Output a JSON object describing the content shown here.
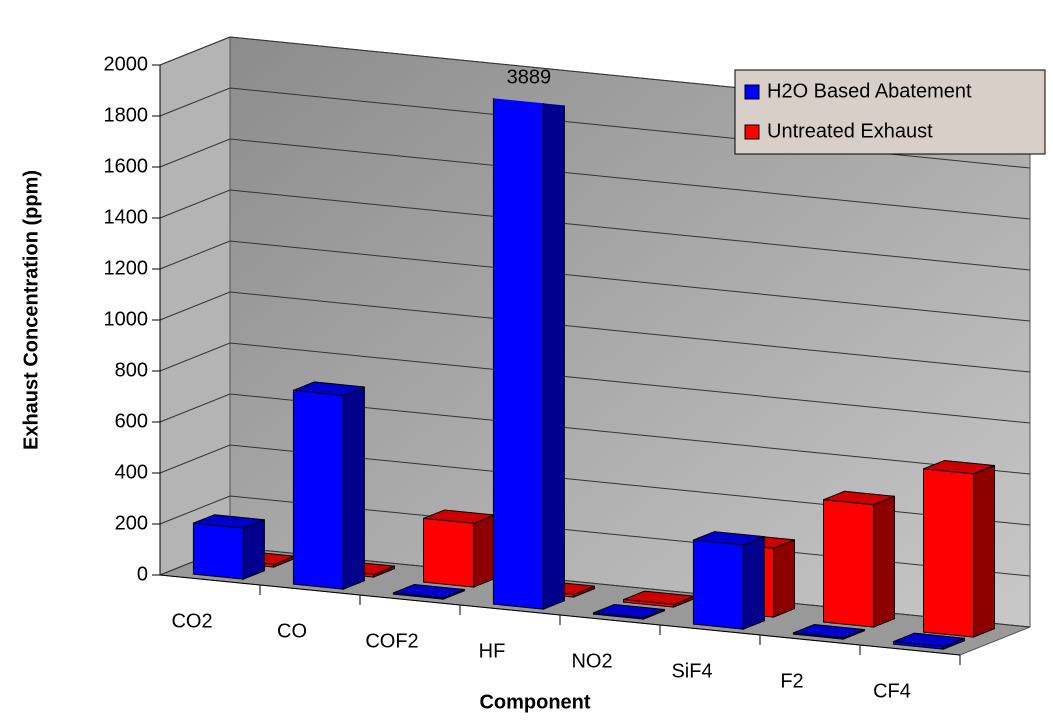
{
  "chart_data": {
    "type": "bar3d",
    "x_label": "Component",
    "y_label": "Exhaust Concentration (ppm)",
    "categories": [
      "CO2",
      "CO",
      "COF2",
      "HF",
      "NO2",
      "SiF4",
      "F2",
      "CF4"
    ],
    "series": [
      {
        "name": "H2O Based Abatement",
        "color": "#0000ff",
        "values": [
          200,
          760,
          5,
          3889,
          5,
          330,
          5,
          10
        ],
        "value_labels": [
          null,
          null,
          null,
          "3889",
          null,
          null,
          null,
          null
        ]
      },
      {
        "name": "Untreated Exhaust",
        "color": "#ff0000",
        "values": [
          10,
          10,
          250,
          10,
          10,
          270,
          480,
          640
        ]
      }
    ],
    "ylim": [
      0,
      2000
    ],
    "yticks": [
      0,
      200,
      400,
      600,
      800,
      1000,
      1200,
      1400,
      1600,
      1800,
      2000
    ],
    "grid": true,
    "legend": "top-right"
  }
}
